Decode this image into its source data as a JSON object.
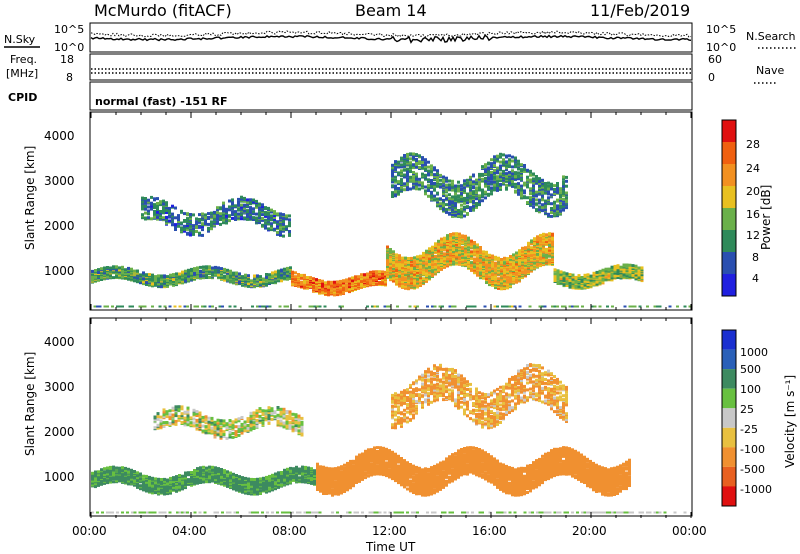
{
  "header": {
    "station": "McMurdo (fitACF)",
    "beam": "Beam 14",
    "date": "11/Feb/2019"
  },
  "top_panels": {
    "nsky_label": "N.Sky",
    "nsearch_label": "N.Search",
    "noise_ticks_left": [
      "10^5",
      "10^0"
    ],
    "noise_ticks_right": [
      "10^5",
      "10^0"
    ],
    "freq_label_1": "Freq.",
    "freq_label_2": "[MHz]",
    "freq_ticks": [
      "18",
      "8"
    ],
    "nave_label": "Nave",
    "nave_ticks": [
      "60",
      "0"
    ],
    "cpid_label": "CPID",
    "cpid_text": "normal (fast) -151 RF"
  },
  "power_panel": {
    "ylabel": "Slant Range [km]",
    "yticks": [
      "4000",
      "3000",
      "2000",
      "1000"
    ],
    "colorbar_label": "Power [dB]",
    "colorbar_ticks": [
      "28",
      "24",
      "20",
      "16",
      "12",
      "8",
      "4"
    ],
    "colors": [
      "#2020e0",
      "#2a4fb0",
      "#2f8a5a",
      "#6ab04a",
      "#e8c020",
      "#f29020",
      "#f06010",
      "#e01010"
    ]
  },
  "velocity_panel": {
    "ylabel": "Slant Range [km]",
    "yticks": [
      "4000",
      "3000",
      "2000",
      "1000"
    ],
    "colorbar_label": "Velocity [m s⁻¹]",
    "colorbar_ticks": [
      "1000",
      "500",
      "100",
      "25",
      "-25",
      "-100",
      "-500",
      "-1000"
    ],
    "colors": [
      "#1a2fd0",
      "#2a60b8",
      "#3d8a60",
      "#68c040",
      "#c8c8c8",
      "#e8c040",
      "#f09030",
      "#e86020",
      "#e01010"
    ]
  },
  "xaxis": {
    "label": "Time UT",
    "ticks": [
      "00:00",
      "04:00",
      "08:00",
      "12:00",
      "16:00",
      "20:00",
      "00:00"
    ]
  },
  "chart_data": [
    {
      "type": "heatmap",
      "title": "Power",
      "xlabel": "Time UT",
      "ylabel": "Slant Range [km]",
      "x_range_hours": [
        0,
        24
      ],
      "ylim": [
        180,
        4600
      ],
      "colorbar": {
        "label": "Power [dB]",
        "range": [
          0,
          30
        ]
      },
      "bands": [
        {
          "t0": 0.0,
          "t1": 8.0,
          "center_km": 950,
          "width_km": 260,
          "value_db": 11
        },
        {
          "t0": 8.0,
          "t1": 11.8,
          "center_km": 800,
          "width_km": 300,
          "value_db": 22
        },
        {
          "t0": 11.8,
          "t1": 18.5,
          "center_km": 1300,
          "width_km": 700,
          "value_db": 18
        },
        {
          "t0": 18.5,
          "t1": 22.0,
          "center_km": 950,
          "width_km": 300,
          "value_db": 14
        },
        {
          "t0": 2.0,
          "t1": 8.0,
          "center_km": 2300,
          "width_km": 500,
          "value_db": 8
        },
        {
          "t0": 12.0,
          "t1": 19.0,
          "center_km": 3000,
          "width_km": 800,
          "value_db": 9
        }
      ]
    },
    {
      "type": "heatmap",
      "title": "Velocity",
      "xlabel": "Time UT",
      "ylabel": "Slant Range [km]",
      "x_range_hours": [
        0,
        24
      ],
      "ylim": [
        180,
        4600
      ],
      "colorbar": {
        "label": "Velocity [m s⁻¹]",
        "range": [
          -1000,
          1000
        ]
      },
      "bands": [
        {
          "t0": 0.0,
          "t1": 9.0,
          "center_km": 1000,
          "width_km": 350,
          "value_ms": 150
        },
        {
          "t0": 9.0,
          "t1": 21.5,
          "center_km": 1200,
          "width_km": 600,
          "value_ms": -250
        },
        {
          "t0": 2.5,
          "t1": 8.5,
          "center_km": 2300,
          "width_km": 400,
          "value_ms": 0
        },
        {
          "t0": 12.0,
          "t1": 19.0,
          "center_km": 2900,
          "width_km": 800,
          "value_ms": -120
        }
      ]
    }
  ]
}
